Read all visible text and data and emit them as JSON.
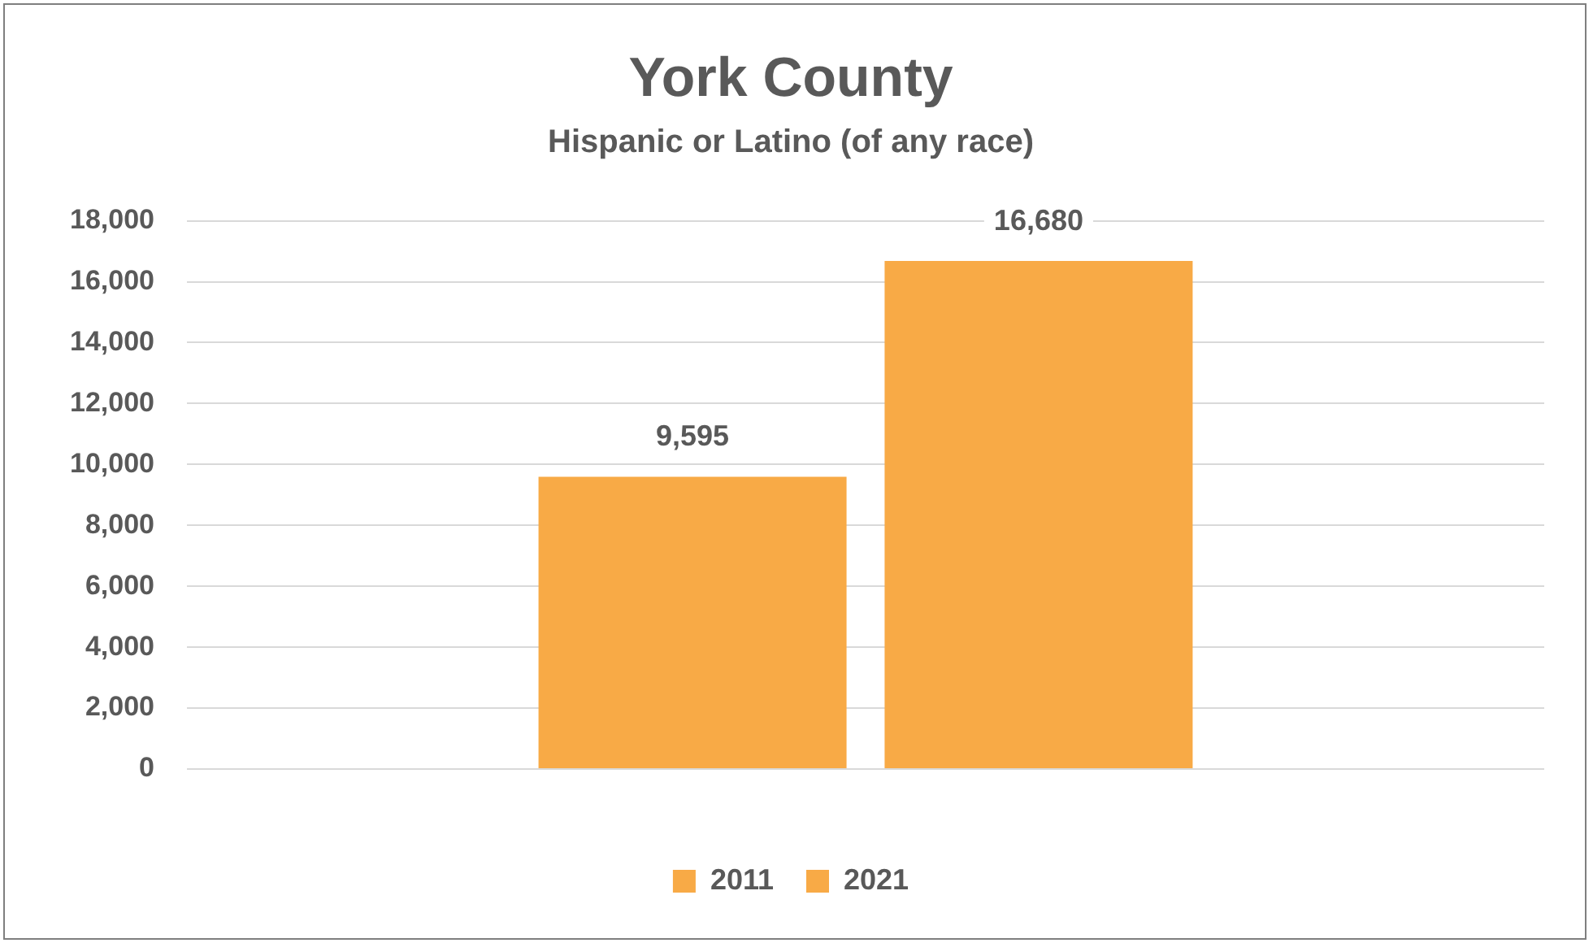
{
  "chart_data": {
    "type": "bar",
    "title": "York County",
    "subtitle": "Hispanic or Latino (of any race)",
    "categories": [
      null
    ],
    "series": [
      {
        "name": "2011",
        "color": "#f8aa46",
        "values": [
          9595
        ],
        "value_labels": [
          "9,595"
        ]
      },
      {
        "name": "2021",
        "color": "#f8aa46",
        "values": [
          16680
        ],
        "value_labels": [
          "16,680"
        ]
      }
    ],
    "ylim": [
      0,
      18000
    ],
    "yticks": [
      0,
      {
        "value": 2000,
        "label": "2,000"
      },
      {
        "value": 4000,
        "label": "4,000"
      },
      {
        "value": 6000,
        "label": "6,000"
      },
      {
        "value": 8000,
        "label": "8,000"
      },
      {
        "value": 10000,
        "label": "10,000"
      },
      {
        "value": 12000,
        "label": "12,000"
      },
      {
        "value": 14000,
        "label": "14,000"
      },
      {
        "value": 16000,
        "label": "16,000"
      },
      {
        "value": 18000,
        "label": "18,000"
      }
    ],
    "grid": "y",
    "legend": "bottom",
    "tick_labels": "y"
  }
}
